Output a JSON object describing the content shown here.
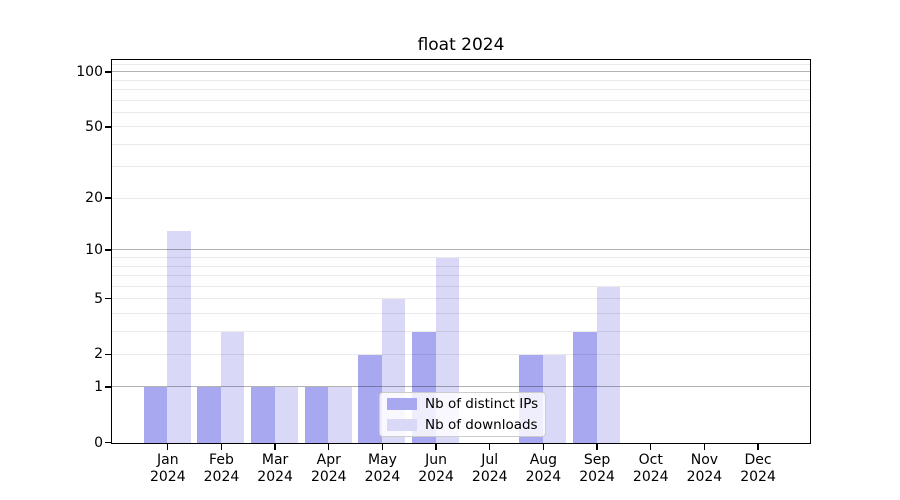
{
  "title": "float 2024",
  "chart_data": {
    "type": "bar",
    "title": "float 2024",
    "categories": [
      "Jan 2024",
      "Feb 2024",
      "Mar 2024",
      "Apr 2024",
      "May 2024",
      "Jun 2024",
      "Jul 2024",
      "Aug 2024",
      "Sep 2024",
      "Oct 2024",
      "Nov 2024",
      "Dec 2024"
    ],
    "x_tick_line1": [
      "Jan",
      "Feb",
      "Mar",
      "Apr",
      "May",
      "Jun",
      "Jul",
      "Aug",
      "Sep",
      "Oct",
      "Nov",
      "Dec"
    ],
    "x_tick_line2": "2024",
    "series": [
      {
        "name": "Nb of distinct IPs",
        "color": "#a8a8f0",
        "values": [
          1,
          1,
          1,
          1,
          2,
          3,
          0,
          2,
          3,
          0,
          0,
          0
        ]
      },
      {
        "name": "Nb of downloads",
        "color": "#d9d9f7",
        "values": [
          13,
          3,
          1,
          1,
          5,
          9,
          0,
          2,
          6,
          0,
          0,
          0
        ]
      }
    ],
    "yscale": "log1p",
    "ylim": [
      0,
      115.5
    ],
    "y_ticks": [
      0,
      1,
      2,
      5,
      10,
      20,
      50,
      100
    ],
    "y_grid_major": [
      1,
      10,
      100
    ],
    "y_grid_minor": [
      2,
      3,
      4,
      5,
      6,
      7,
      8,
      9,
      20,
      30,
      40,
      50,
      60,
      70,
      80,
      90,
      110
    ],
    "grid": true,
    "legend": {
      "labels": [
        "Nb of distinct IPs",
        "Nb of downloads"
      ],
      "position": "lower-center-inside"
    },
    "colors": {
      "axis": "#000000",
      "grid_major": "#b3b3b3",
      "grid_minor": "#ebebeb",
      "background": "#ffffff"
    }
  }
}
